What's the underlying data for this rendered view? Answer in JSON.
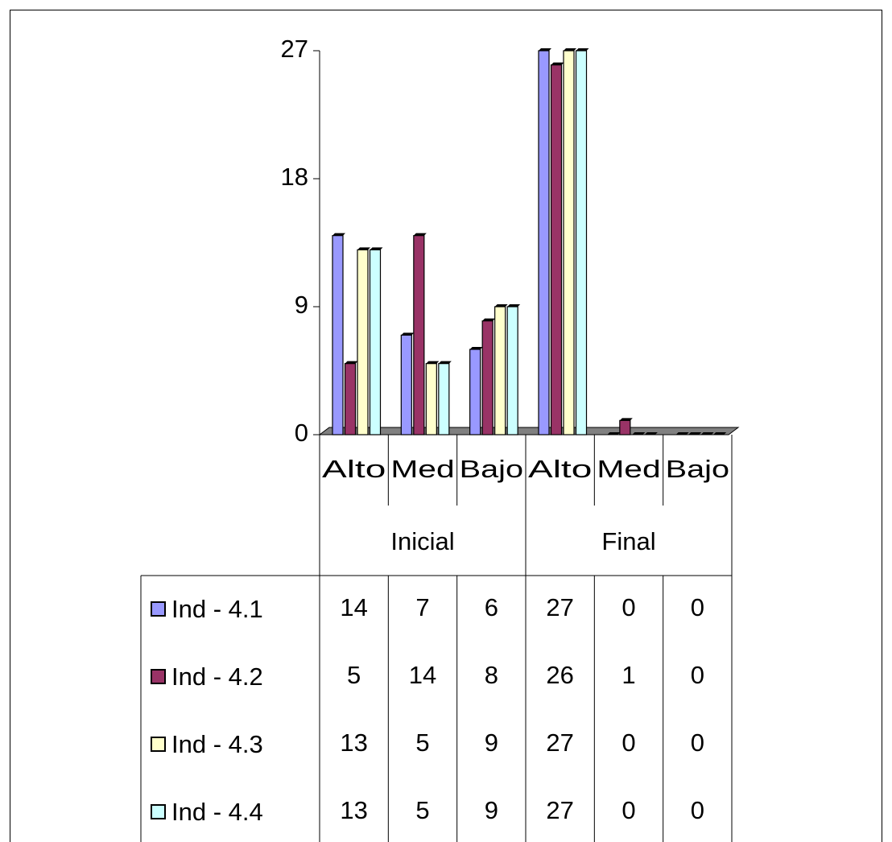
{
  "chart_data": {
    "type": "bar",
    "categories": [
      "Alto",
      "Med",
      "Bajo",
      "Alto",
      "Med",
      "Bajo"
    ],
    "groups": [
      "Inicial",
      "Final"
    ],
    "series": [
      {
        "name": "Ind - 4.1",
        "color": "#9999ff",
        "values": [
          14,
          7,
          6,
          27,
          0,
          0
        ]
      },
      {
        "name": "Ind - 4.2",
        "color": "#993366",
        "values": [
          5,
          14,
          8,
          26,
          1,
          0
        ]
      },
      {
        "name": "Ind - 4.3",
        "color": "#ffffcc",
        "values": [
          13,
          5,
          9,
          27,
          0,
          0
        ]
      },
      {
        "name": "Ind - 4.4",
        "color": "#ccffff",
        "values": [
          13,
          5,
          9,
          27,
          0,
          0
        ]
      }
    ],
    "ylim": [
      0,
      27
    ],
    "yticks": [
      0,
      9,
      18,
      27
    ]
  }
}
